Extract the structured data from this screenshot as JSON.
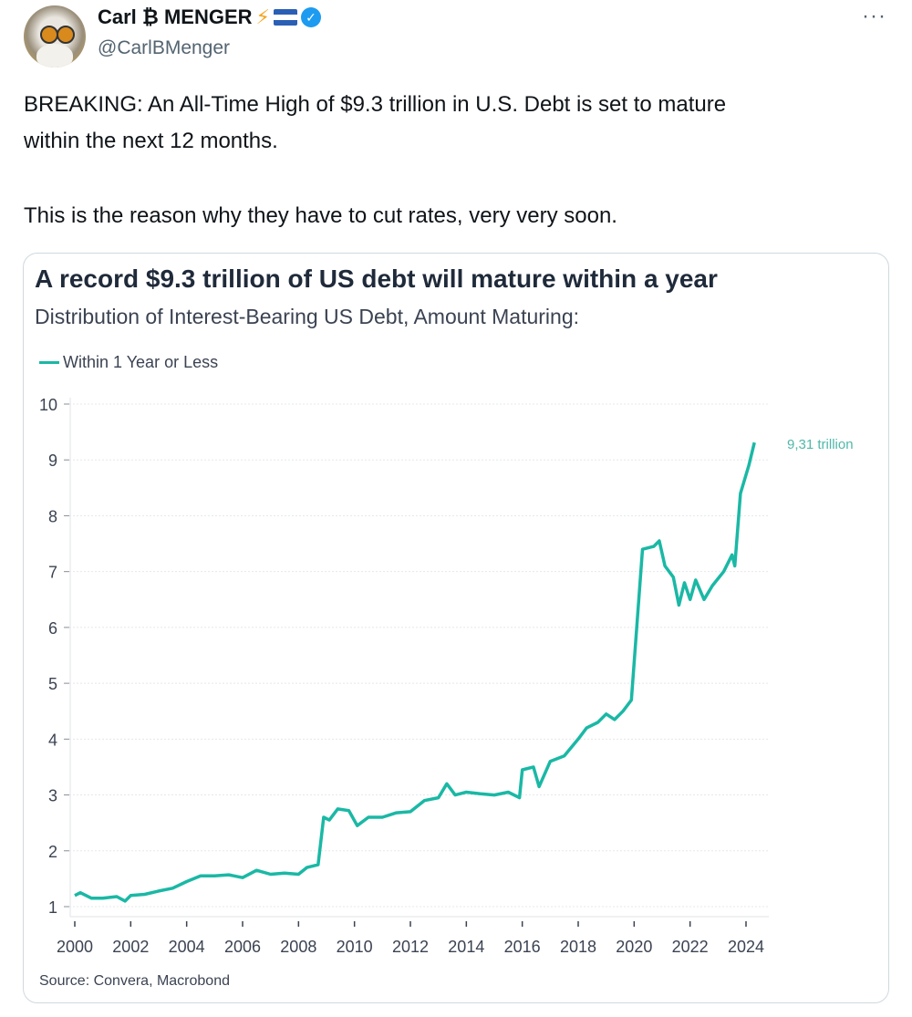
{
  "author": {
    "name": "Carl ₿ MENGER",
    "handle": "@CarlBMenger",
    "badges": [
      "lightning-emoji",
      "el-salvador-flag",
      "verified-badge"
    ],
    "verified_color": "#1d9bf0"
  },
  "more_label": "···",
  "tweet": {
    "line1": "BREAKING: An All-Time High of $9.3 trillion in U.S. Debt is set to mature",
    "line2": "within the next 12 months.",
    "line3": "This is the reason why they have to cut rates, very very soon."
  },
  "card": {
    "title": "A record $9.3 trillion of US debt will mature within a year",
    "subtitle": "Distribution of Interest-Bearing US Debt, Amount Maturing:",
    "source": "Source: Convera, Macrobond"
  },
  "chart_data": {
    "type": "line",
    "title": "A record $9.3 trillion of US debt will mature within a year",
    "subtitle": "Distribution of Interest-Bearing US Debt, Amount Maturing:",
    "legend_position": "top-left",
    "grid": true,
    "xlim": [
      2000,
      2024.3
    ],
    "ylim": [
      1,
      10
    ],
    "x_ticks": [
      "2000",
      "2002",
      "2004",
      "2006",
      "2008",
      "2010",
      "2012",
      "2014",
      "2016",
      "2018",
      "2020",
      "2022",
      "2024"
    ],
    "y_ticks": [
      "1",
      "2",
      "3",
      "4",
      "5",
      "6",
      "7",
      "8",
      "9",
      "10"
    ],
    "annotation": "9,31 trillion",
    "series": [
      {
        "name": "Within 1 Year or Less",
        "color": "#1ab8a5",
        "x": [
          2000,
          2000.2,
          2000.6,
          2001,
          2001.5,
          2001.8,
          2002,
          2002.5,
          2003,
          2003.5,
          2004,
          2004.5,
          2005,
          2005.5,
          2006,
          2006.5,
          2007,
          2007.5,
          2008,
          2008.3,
          2008.7,
          2008.9,
          2009.1,
          2009.4,
          2009.8,
          2010.1,
          2010.5,
          2011,
          2011.5,
          2012,
          2012.5,
          2013,
          2013.3,
          2013.6,
          2014,
          2014.5,
          2015,
          2015.5,
          2015.9,
          2016,
          2016.4,
          2016.6,
          2017,
          2017.5,
          2018,
          2018.3,
          2018.7,
          2019,
          2019.3,
          2019.6,
          2019.9,
          2020.3,
          2020.7,
          2020.9,
          2021.1,
          2021.4,
          2021.6,
          2021.8,
          2022,
          2022.2,
          2022.5,
          2022.8,
          2023.2,
          2023.5,
          2023.6,
          2023.8,
          2024.1,
          2024.3
        ],
        "y": [
          1.2,
          1.25,
          1.15,
          1.15,
          1.18,
          1.1,
          1.2,
          1.22,
          1.28,
          1.33,
          1.45,
          1.55,
          1.55,
          1.57,
          1.52,
          1.65,
          1.58,
          1.6,
          1.58,
          1.7,
          1.75,
          2.6,
          2.55,
          2.75,
          2.72,
          2.45,
          2.6,
          2.6,
          2.68,
          2.7,
          2.9,
          2.95,
          3.2,
          3.0,
          3.05,
          3.02,
          3.0,
          3.05,
          2.95,
          3.45,
          3.5,
          3.15,
          3.6,
          3.7,
          4.0,
          4.2,
          4.3,
          4.45,
          4.35,
          4.5,
          4.7,
          7.4,
          7.45,
          7.55,
          7.1,
          6.9,
          6.4,
          6.8,
          6.5,
          6.85,
          6.5,
          6.75,
          7.0,
          7.3,
          7.1,
          8.4,
          8.9,
          9.31
        ]
      }
    ]
  }
}
